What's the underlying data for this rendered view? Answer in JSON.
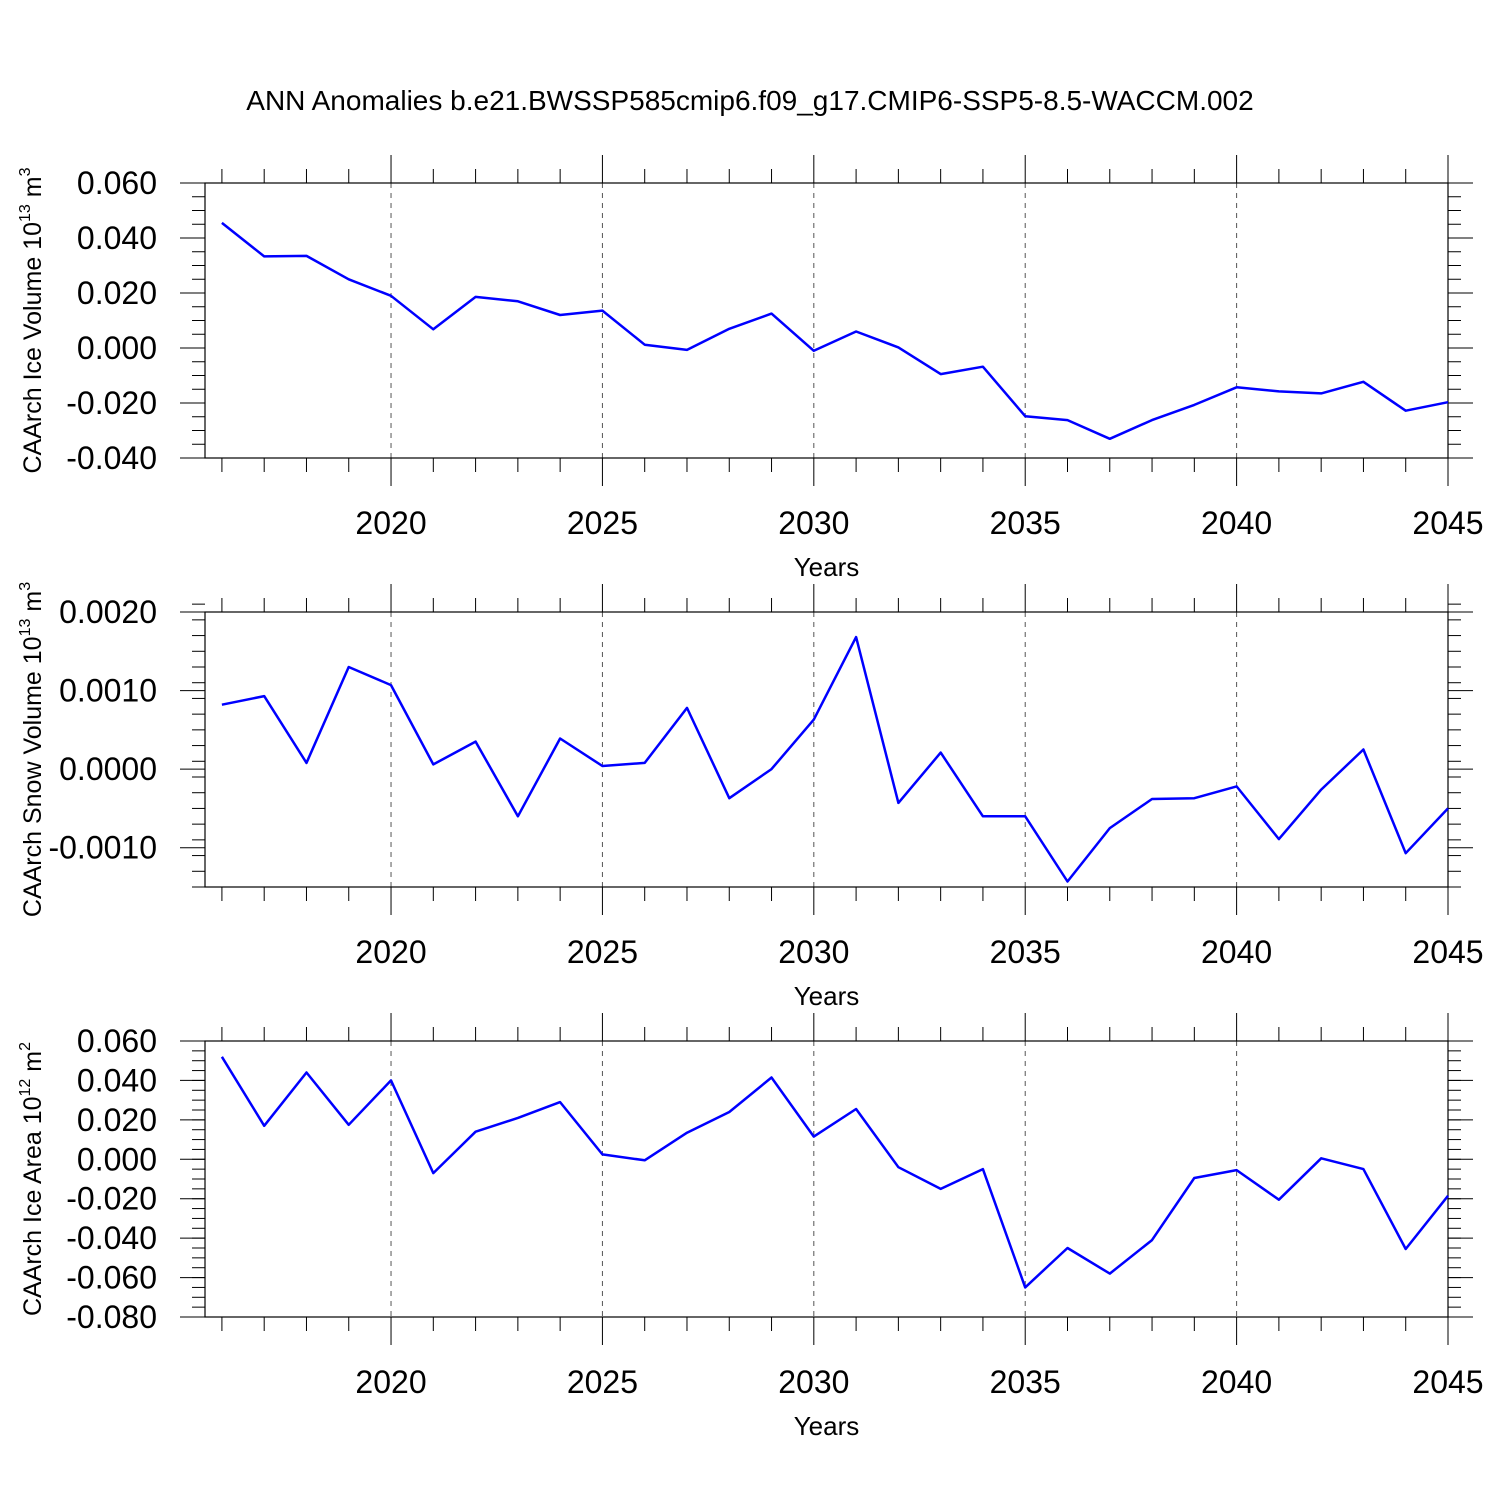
{
  "page": {
    "title": "ANN Anomalies b.e21.BWSSP585cmip6.f09_g17.CMIP6-SSP5-8.5-WACCM.002"
  },
  "style": {
    "line_color": "#0000ff",
    "axis_color": "#000000",
    "grid_color": "#555555"
  },
  "chart_data": [
    {
      "type": "line",
      "xlabel": "Years",
      "ylabel": "CAArch Ice Volume 10",
      "ylabel_exponent": "13",
      "ylabel_unit": "m",
      "ylabel_unit_exponent": "3",
      "xlim": [
        2015.6,
        2045
      ],
      "ylim": [
        -0.04,
        0.06
      ],
      "x_ticks": [
        2020,
        2025,
        2030,
        2035,
        2040,
        2045
      ],
      "x_tick_labels": [
        "2020",
        "2025",
        "2030",
        "2035",
        "2040",
        "2045"
      ],
      "y_ticks": [
        0.06,
        0.04,
        0.02,
        0.0,
        -0.02,
        -0.04
      ],
      "y_tick_labels": [
        "0.060",
        "0.040",
        "0.020",
        "0.000",
        "-0.020",
        "-0.040"
      ],
      "y_minor_step": 0.005,
      "grid": "vertical dashed at major x ticks",
      "x": [
        2016,
        2017,
        2018,
        2019,
        2020,
        2021,
        2022,
        2023,
        2024,
        2025,
        2026,
        2027,
        2028,
        2029,
        2030,
        2031,
        2032,
        2033,
        2034,
        2035,
        2036,
        2037,
        2038,
        2039,
        2040,
        2041,
        2042,
        2043,
        2044,
        2045
      ],
      "series": [
        {
          "values": [
            0.0455,
            0.0333,
            0.0335,
            0.025,
            0.019,
            0.0068,
            0.0186,
            0.017,
            0.012,
            0.0136,
            0.0012,
            -0.0007,
            0.007,
            0.0125,
            -0.001,
            0.006,
            0.0002,
            -0.0095,
            -0.0068,
            -0.0248,
            -0.0262,
            -0.033,
            -0.0262,
            -0.0207,
            -0.0143,
            -0.0158,
            -0.0165,
            -0.0123,
            -0.0228,
            -0.0197
          ]
        }
      ]
    },
    {
      "type": "line",
      "xlabel": "Years",
      "ylabel": "CAArch Snow Volume 10",
      "ylabel_exponent": "13",
      "ylabel_unit": "m",
      "ylabel_unit_exponent": "3",
      "xlim": [
        2015.6,
        2045
      ],
      "ylim": [
        -0.0015,
        0.002
      ],
      "x_ticks": [
        2020,
        2025,
        2030,
        2035,
        2040,
        2045
      ],
      "x_tick_labels": [
        "2020",
        "2025",
        "2030",
        "2035",
        "2040",
        "2045"
      ],
      "y_ticks": [
        0.002,
        0.001,
        0.0,
        -0.001
      ],
      "y_tick_labels": [
        "0.0020",
        "0.0010",
        "0.0000",
        "-0.0010"
      ],
      "y_minor_step": 0.0002,
      "grid": "vertical dashed at major x ticks",
      "x": [
        2016,
        2017,
        2018,
        2019,
        2020,
        2021,
        2022,
        2023,
        2024,
        2025,
        2026,
        2027,
        2028,
        2029,
        2030,
        2031,
        2032,
        2033,
        2034,
        2035,
        2036,
        2037,
        2038,
        2039,
        2040,
        2041,
        2042,
        2043,
        2044,
        2045
      ],
      "series": [
        {
          "values": [
            0.00082,
            0.00093,
            8e-05,
            0.0013,
            0.00107,
            6e-05,
            0.00035,
            -0.0006,
            0.00039,
            4e-05,
            8e-05,
            0.00078,
            -0.00037,
            0.0,
            0.00063,
            0.00168,
            -0.00043,
            0.00021,
            -0.0006,
            -0.0006,
            -0.00143,
            -0.00075,
            -0.00038,
            -0.00037,
            -0.00022,
            -0.00089,
            -0.00026,
            0.00025,
            -0.00107,
            -0.0005
          ]
        }
      ]
    },
    {
      "type": "line",
      "xlabel": "Years",
      "ylabel": "CAArch Ice Area 10",
      "ylabel_exponent": "12",
      "ylabel_unit": "m",
      "ylabel_unit_exponent": "2",
      "xlim": [
        2015.6,
        2045
      ],
      "ylim": [
        -0.08,
        0.06
      ],
      "x_ticks": [
        2020,
        2025,
        2030,
        2035,
        2040,
        2045
      ],
      "x_tick_labels": [
        "2020",
        "2025",
        "2030",
        "2035",
        "2040",
        "2045"
      ],
      "y_ticks": [
        0.06,
        0.04,
        0.02,
        0.0,
        -0.02,
        -0.04,
        -0.06,
        -0.08
      ],
      "y_tick_labels": [
        "0.060",
        "0.040",
        "0.020",
        "0.000",
        "-0.020",
        "-0.040",
        "-0.060",
        "-0.080"
      ],
      "y_minor_step": 0.005,
      "grid": "vertical dashed at major x ticks",
      "x": [
        2016,
        2017,
        2018,
        2019,
        2020,
        2021,
        2022,
        2023,
        2024,
        2025,
        2026,
        2027,
        2028,
        2029,
        2030,
        2031,
        2032,
        2033,
        2034,
        2035,
        2036,
        2037,
        2038,
        2039,
        2040,
        2041,
        2042,
        2043,
        2044,
        2045
      ],
      "series": [
        {
          "values": [
            0.052,
            0.017,
            0.044,
            0.0175,
            0.04,
            -0.007,
            0.014,
            0.021,
            0.029,
            0.0025,
            -0.0005,
            0.0135,
            0.024,
            0.0415,
            0.0115,
            0.0255,
            -0.004,
            -0.015,
            -0.005,
            -0.065,
            -0.045,
            -0.058,
            -0.041,
            -0.0095,
            -0.0055,
            -0.0205,
            0.0005,
            -0.005,
            -0.0455,
            -0.0185
          ]
        }
      ]
    }
  ]
}
